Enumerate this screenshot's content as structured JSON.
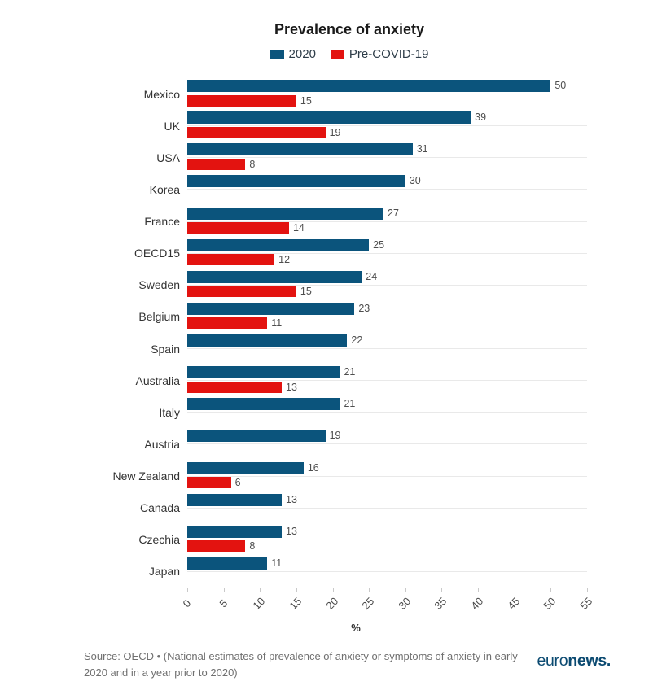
{
  "chart_data": {
    "type": "bar",
    "orientation": "horizontal",
    "title": "Prevalence of anxiety",
    "xlabel": "%",
    "xlim": [
      0,
      55
    ],
    "xticks": [
      0,
      5,
      10,
      15,
      20,
      25,
      30,
      35,
      40,
      45,
      50,
      55
    ],
    "grid": "light horizontal line at each category row center",
    "legend_position": "top-center",
    "categories": [
      "Mexico",
      "UK",
      "USA",
      "Korea",
      "France",
      "OECD15",
      "Sweden",
      "Belgium",
      "Spain",
      "Australia",
      "Italy",
      "Austria",
      "New Zealand",
      "Canada",
      "Czechia",
      "Japan"
    ],
    "series": [
      {
        "name": "2020",
        "color": "#0b547c",
        "values": [
          50,
          39,
          31,
          30,
          27,
          25,
          24,
          23,
          22,
          21,
          21,
          19,
          16,
          13,
          13,
          11
        ]
      },
      {
        "name": "Pre-COVID-19",
        "color": "#e31310",
        "values": [
          15,
          19,
          8,
          null,
          14,
          12,
          15,
          11,
          null,
          13,
          null,
          null,
          6,
          null,
          8,
          null
        ]
      }
    ]
  },
  "footer": {
    "source": "Source: OECD • (National estimates of prevalence of anxiety or symptoms of anxiety in early 2020 and in a year prior to 2020)",
    "logo_regular": "euro",
    "logo_bold": "news."
  },
  "style_colors": {
    "bar_2020": "#0b547c",
    "bar_pre_covid": "#e31310",
    "gridline": "#e9e9e9",
    "axis_line": "#d2d2d2",
    "value_label": "#4e4e4e",
    "logo_blue": "#0b4a71"
  }
}
